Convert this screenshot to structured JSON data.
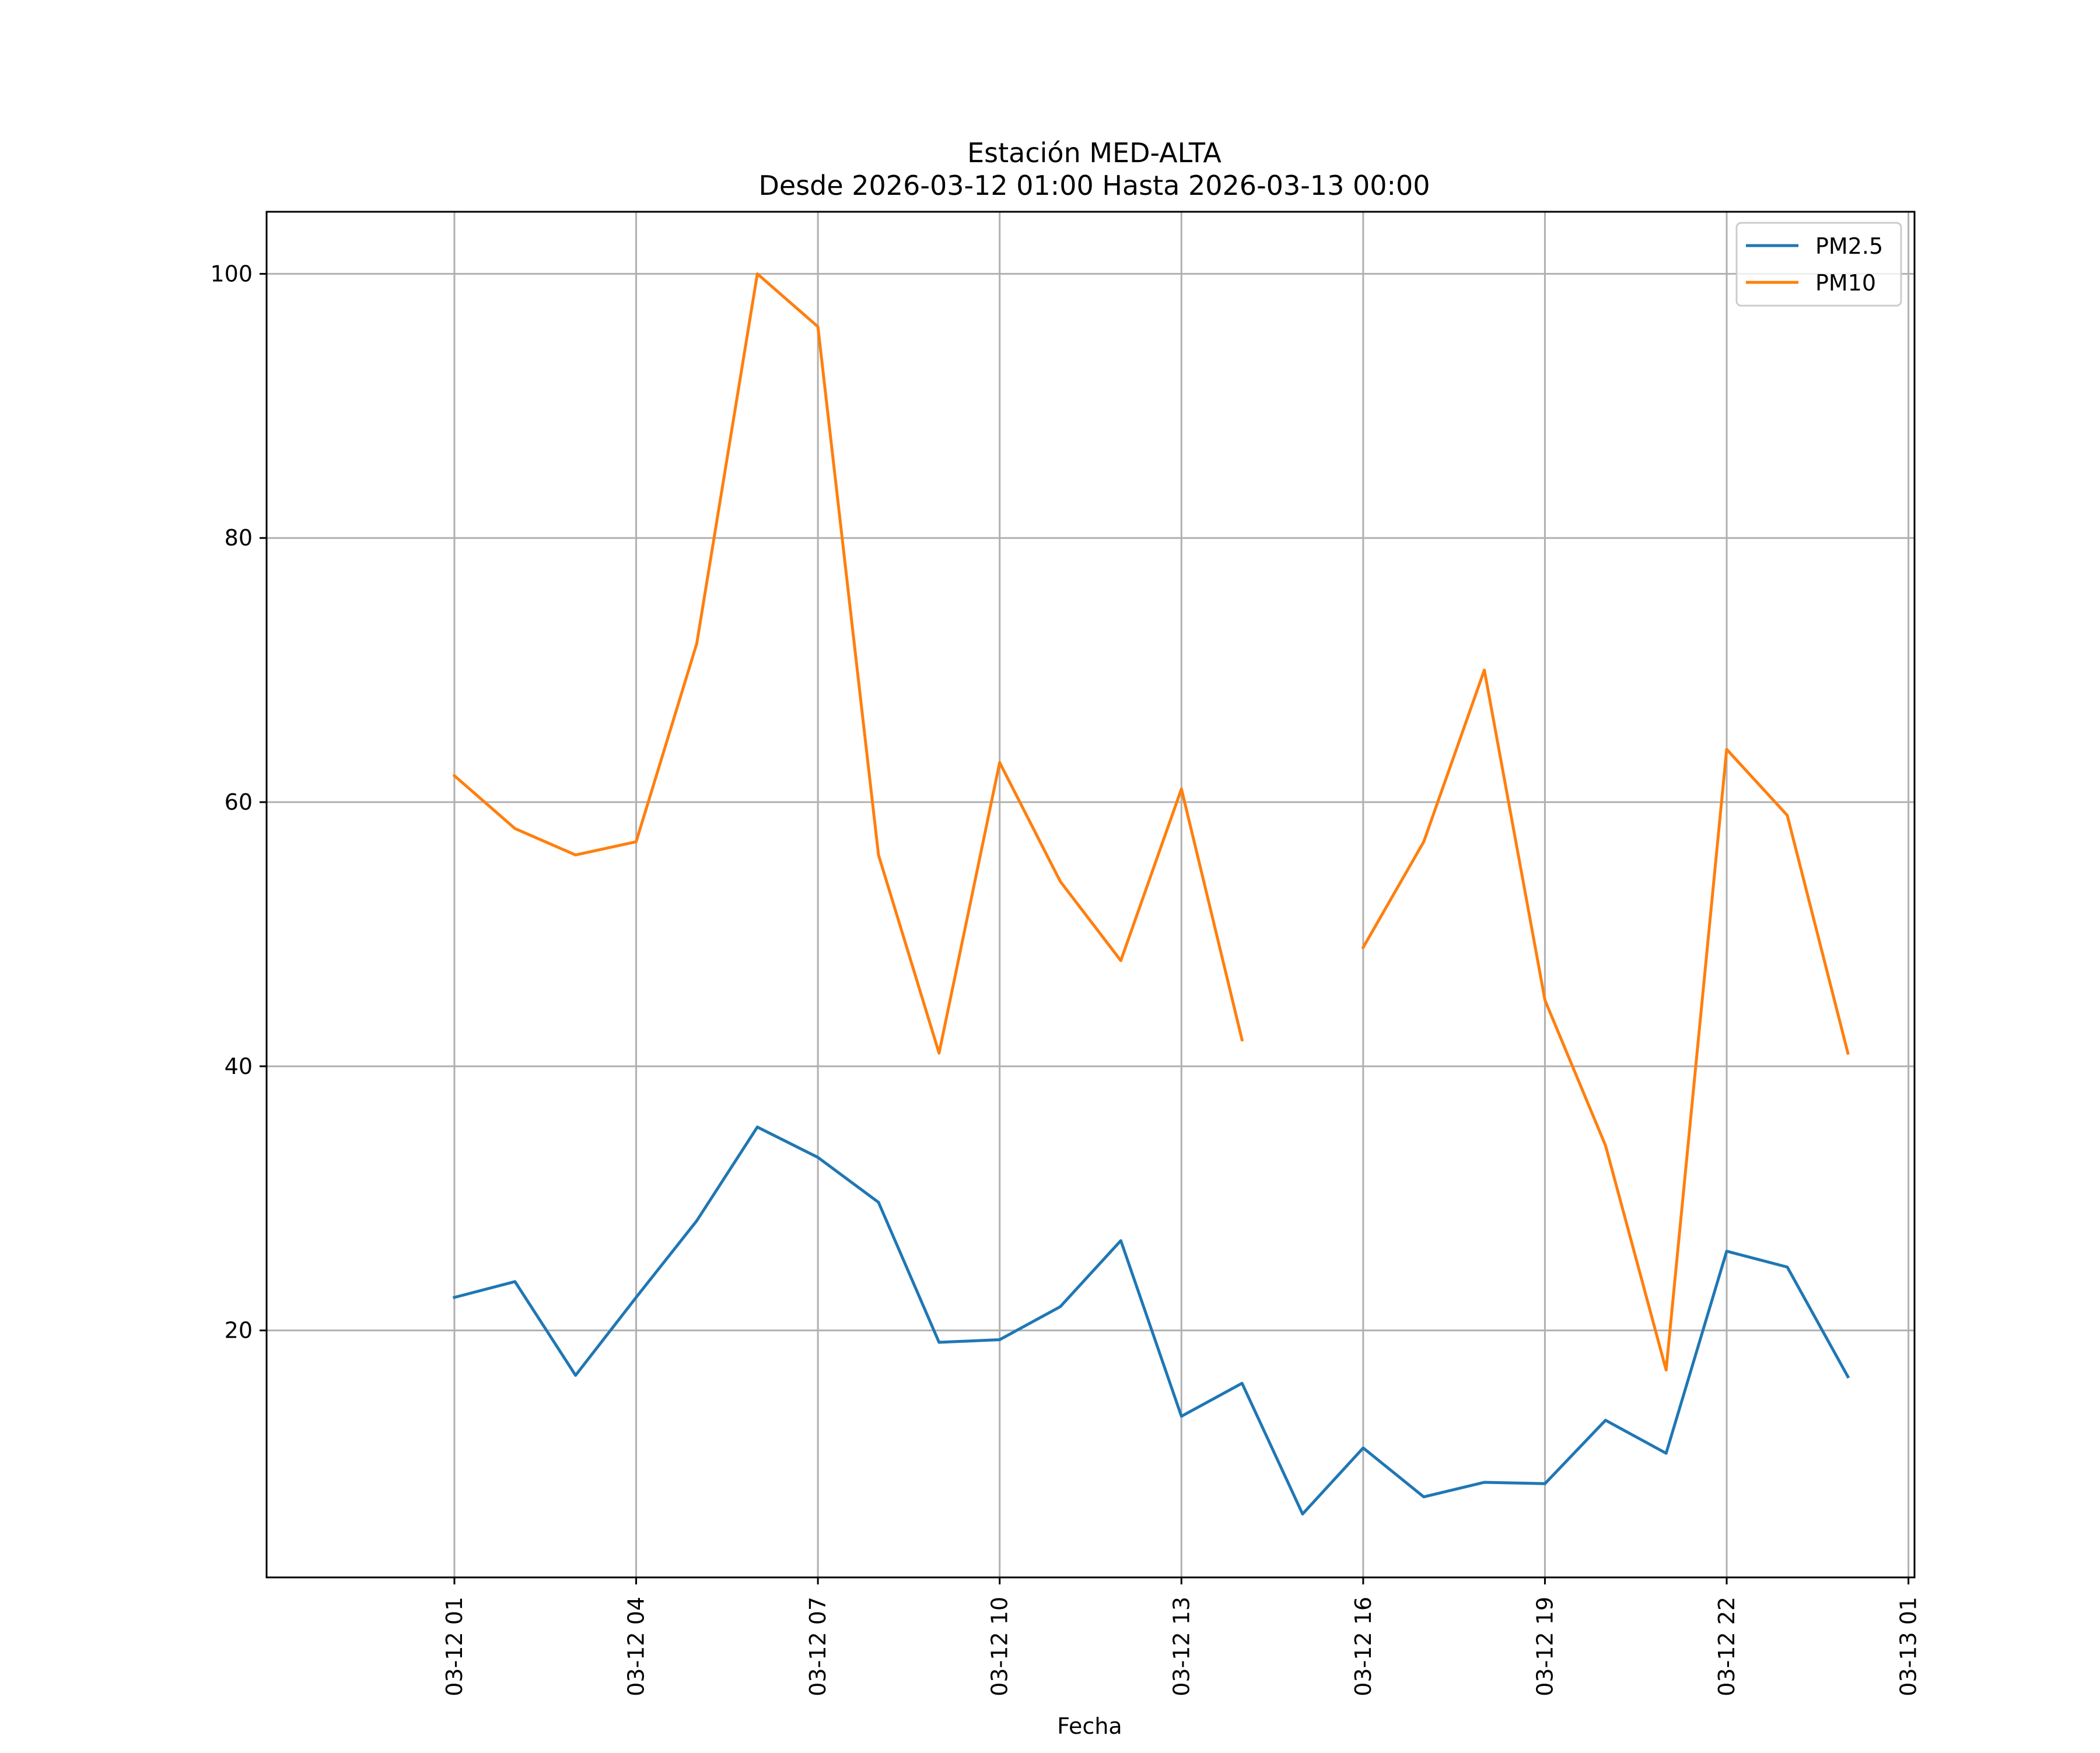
{
  "chart_data": {
    "type": "line",
    "title_lines": [
      "Estación MED-ALTA",
      "Desde 2026-03-12 01:00 Hasta 2026-03-13 00:00"
    ],
    "xlabel": "Fecha",
    "ylabel": "",
    "x": [
      "2026-03-12 01:00",
      "2026-03-12 02:00",
      "2026-03-12 03:00",
      "2026-03-12 04:00",
      "2026-03-12 05:00",
      "2026-03-12 06:00",
      "2026-03-12 07:00",
      "2026-03-12 08:00",
      "2026-03-12 09:00",
      "2026-03-12 10:00",
      "2026-03-12 11:00",
      "2026-03-12 12:00",
      "2026-03-12 13:00",
      "2026-03-12 14:00",
      "2026-03-12 15:00",
      "2026-03-12 16:00",
      "2026-03-12 17:00",
      "2026-03-12 18:00",
      "2026-03-12 19:00",
      "2026-03-12 20:00",
      "2026-03-12 21:00",
      "2026-03-12 22:00",
      "2026-03-12 23:00",
      "2026-03-13 00:00"
    ],
    "xlim": [
      "2026-03-11 21:54",
      "2026-03-13 01:06"
    ],
    "xticks": [
      "2026-03-12 01:00",
      "2026-03-12 04:00",
      "2026-03-12 07:00",
      "2026-03-12 10:00",
      "2026-03-12 13:00",
      "2026-03-12 16:00",
      "2026-03-12 19:00",
      "2026-03-12 22:00",
      "2026-03-13 01:00"
    ],
    "xtick_labels": [
      "03-12 01",
      "03-12 04",
      "03-12 07",
      "03-12 10",
      "03-12 13",
      "03-12 16",
      "03-12 19",
      "03-12 22",
      "03-13 01"
    ],
    "ylim": [
      1.3,
      104.7
    ],
    "yticks": [
      20,
      40,
      60,
      80,
      100
    ],
    "ytick_labels": [
      "20",
      "40",
      "60",
      "80",
      "100"
    ],
    "grid": true,
    "legend": "top-right",
    "series": [
      {
        "name": "PM2.5",
        "color": "#1f77b4",
        "values": [
          22.5,
          23.7,
          16.6,
          22.5,
          28.3,
          35.4,
          33.1,
          29.7,
          19.1,
          19.3,
          21.8,
          26.8,
          13.5,
          16.0,
          6.1,
          11.1,
          7.4,
          8.5,
          8.4,
          13.2,
          10.7,
          26.0,
          24.8,
          16.5
        ]
      },
      {
        "name": "PM10",
        "color": "#ff7f0e",
        "values": [
          62,
          58,
          56,
          57,
          72,
          100,
          96,
          56,
          41,
          63,
          54,
          48,
          61,
          42,
          null,
          49,
          57,
          70,
          45,
          34,
          17,
          64,
          59,
          41
        ]
      }
    ]
  }
}
